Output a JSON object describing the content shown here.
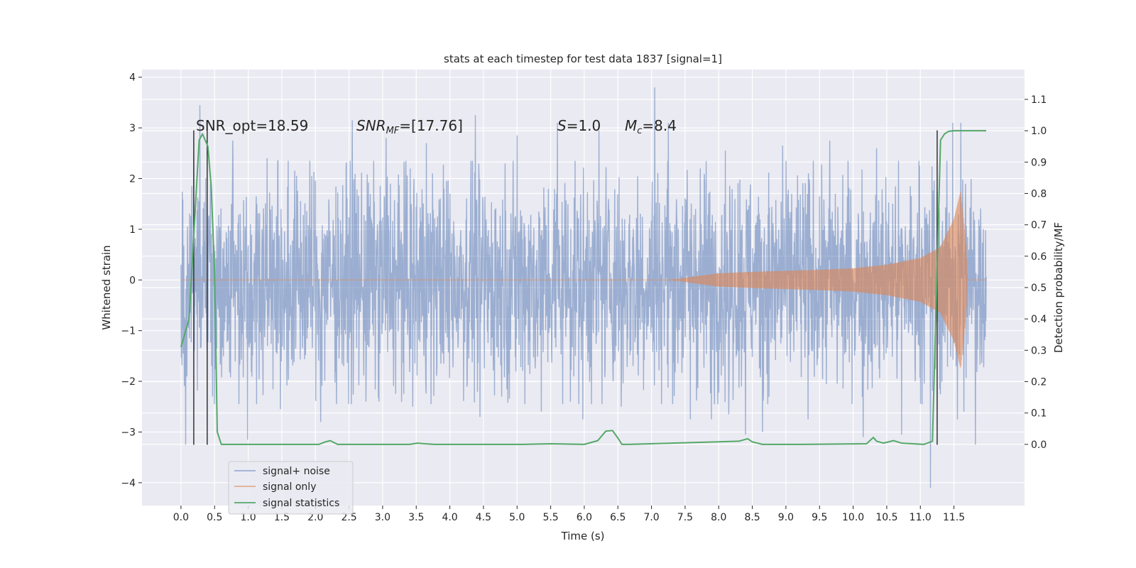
{
  "chart_data": {
    "type": "line",
    "title": "stats at each timestep for test data 1837 [signal=1]",
    "xlabel": "Time (s)",
    "ylabel_left": "Whitened strain",
    "ylabel_right": "Detection probability/MF",
    "xlim": [
      -0.58,
      12.55
    ],
    "ylim_left": [
      -4.45,
      4.15
    ],
    "ylim_right": [
      -0.195,
      1.195
    ],
    "x_ticks": [
      "0.0",
      "0.5",
      "1.0",
      "1.5",
      "2.0",
      "2.5",
      "3.0",
      "3.5",
      "4.0",
      "4.5",
      "5.0",
      "5.5",
      "6.0",
      "6.5",
      "7.0",
      "7.5",
      "8.0",
      "8.5",
      "9.0",
      "9.5",
      "10.0",
      "10.5",
      "11.0",
      "11.5"
    ],
    "y_left_ticks": [
      "−4",
      "−3",
      "−2",
      "−1",
      "0",
      "1",
      "2",
      "3",
      "4"
    ],
    "y_right_ticks": [
      "0.0",
      "0.1",
      "0.2",
      "0.3",
      "0.4",
      "0.5",
      "0.6",
      "0.7",
      "0.8",
      "0.9",
      "1.0",
      "1.1"
    ],
    "grid": true,
    "legend_position": "lower-left",
    "annotations": {
      "snr_opt": "SNR_opt=18.59",
      "snr_mf_main": "SNR",
      "snr_mf_sub": "MF",
      "snr_mf_value": "=[17.76]",
      "s_main": "S",
      "s_value": "=1.0",
      "mc_main": "M",
      "mc_sub": "c",
      "mc_value": "=8.4"
    },
    "series": [
      {
        "name": "signal+ noise",
        "color": "#4c72b0",
        "axis": "left",
        "x_range": [
          0.0,
          11.98
        ],
        "typical_amplitude": 1.2,
        "spikes": [
          [
            0.07,
            -3.25
          ],
          [
            0.19,
            2.5
          ],
          [
            0.28,
            3.45
          ],
          [
            0.47,
            -2.3
          ],
          [
            0.77,
            2.75
          ],
          [
            0.99,
            -3.15
          ],
          [
            1.28,
            2.4
          ],
          [
            1.48,
            -2.55
          ],
          [
            2.08,
            -2.8
          ],
          [
            2.55,
            3.15
          ],
          [
            2.75,
            -2.4
          ],
          [
            3.05,
            2.8
          ],
          [
            3.45,
            -2.5
          ],
          [
            3.65,
            2.7
          ],
          [
            4.38,
            3.25
          ],
          [
            4.45,
            -2.7
          ],
          [
            5.0,
            2.85
          ],
          [
            5.36,
            -2.6
          ],
          [
            5.6,
            3.1
          ],
          [
            5.98,
            -2.75
          ],
          [
            6.22,
            2.95
          ],
          [
            6.55,
            -2.5
          ],
          [
            7.05,
            3.8
          ],
          [
            7.25,
            3.1
          ],
          [
            7.58,
            -2.75
          ],
          [
            7.89,
            -2.75
          ],
          [
            8.1,
            2.55
          ],
          [
            8.15,
            -2.65
          ],
          [
            8.4,
            -3.05
          ],
          [
            8.65,
            -3.0
          ],
          [
            8.95,
            2.65
          ],
          [
            9.33,
            -2.75
          ],
          [
            9.65,
            2.75
          ],
          [
            10.15,
            -3.1
          ],
          [
            10.35,
            2.6
          ],
          [
            10.72,
            -3.05
          ],
          [
            11.15,
            -4.1
          ],
          [
            11.48,
            3.1
          ],
          [
            11.55,
            -2.75
          ],
          [
            11.6,
            3.1
          ],
          [
            11.65,
            -2.6
          ],
          [
            11.82,
            -3.25
          ]
        ]
      },
      {
        "name": "signal only",
        "color": "#dd8452",
        "axis": "left",
        "x_range": [
          0.0,
          11.98
        ],
        "envelope": [
          [
            7.3,
            0.0
          ],
          [
            7.6,
            0.06
          ],
          [
            8.0,
            0.13
          ],
          [
            8.5,
            0.16
          ],
          [
            9.0,
            0.18
          ],
          [
            9.5,
            0.2
          ],
          [
            10.0,
            0.23
          ],
          [
            10.5,
            0.3
          ],
          [
            11.0,
            0.43
          ],
          [
            11.3,
            0.65
          ],
          [
            11.5,
            1.2
          ],
          [
            11.6,
            1.75
          ],
          [
            11.68,
            0.7
          ],
          [
            11.7,
            0.0
          ],
          [
            11.98,
            0.0
          ]
        ]
      },
      {
        "name": "signal statistics",
        "color": "#55a868",
        "axis": "right",
        "x": [
          0.0,
          0.12,
          0.27,
          0.32,
          0.4,
          0.45,
          0.5,
          0.54,
          0.6,
          2.05,
          2.15,
          2.22,
          2.33,
          3.4,
          3.52,
          3.62,
          3.78,
          5.1,
          5.5,
          6.0,
          6.2,
          6.32,
          6.42,
          6.5,
          6.56,
          6.66,
          8.3,
          8.43,
          8.5,
          8.65,
          8.95,
          9.2,
          10.2,
          10.3,
          10.35,
          10.45,
          10.6,
          10.72,
          11.05,
          11.18,
          11.3,
          11.36,
          11.42,
          11.5,
          11.98
        ],
        "y": [
          0.31,
          0.4,
          0.97,
          0.99,
          0.95,
          0.82,
          0.55,
          0.04,
          0.0,
          0.0,
          0.008,
          0.012,
          0.0,
          0.0,
          0.004,
          0.002,
          0.0,
          0.0,
          0.002,
          0.0,
          0.012,
          0.042,
          0.044,
          0.02,
          0.0,
          0.0,
          0.01,
          0.018,
          0.008,
          0.0,
          0.0,
          0.0,
          0.002,
          0.022,
          0.01,
          0.004,
          0.012,
          0.004,
          0.0,
          0.01,
          0.97,
          0.99,
          0.998,
          1.0,
          1.0
        ]
      }
    ],
    "vertical_markers": [
      {
        "x": 0.19,
        "y0": -3.25,
        "y1": 2.95
      },
      {
        "x": 0.39,
        "y0": -3.25,
        "y1": 2.95
      },
      {
        "x": 11.25,
        "y0": -3.25,
        "y1": 2.95
      }
    ]
  }
}
